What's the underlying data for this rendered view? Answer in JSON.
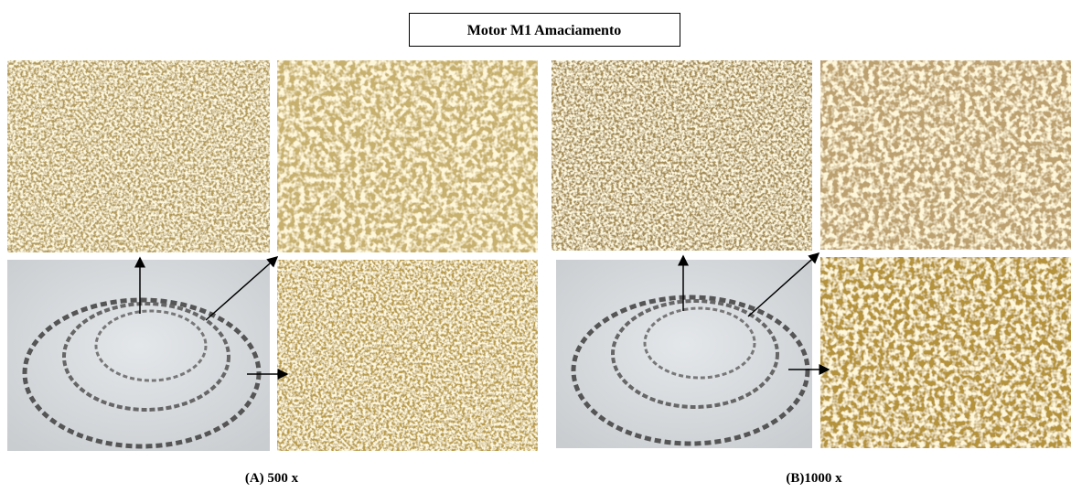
{
  "title": "Motor M1 Amaciamento",
  "panels": [
    {
      "caption": "(A) 500 x"
    },
    {
      "caption": "(B)1000 x"
    }
  ]
}
